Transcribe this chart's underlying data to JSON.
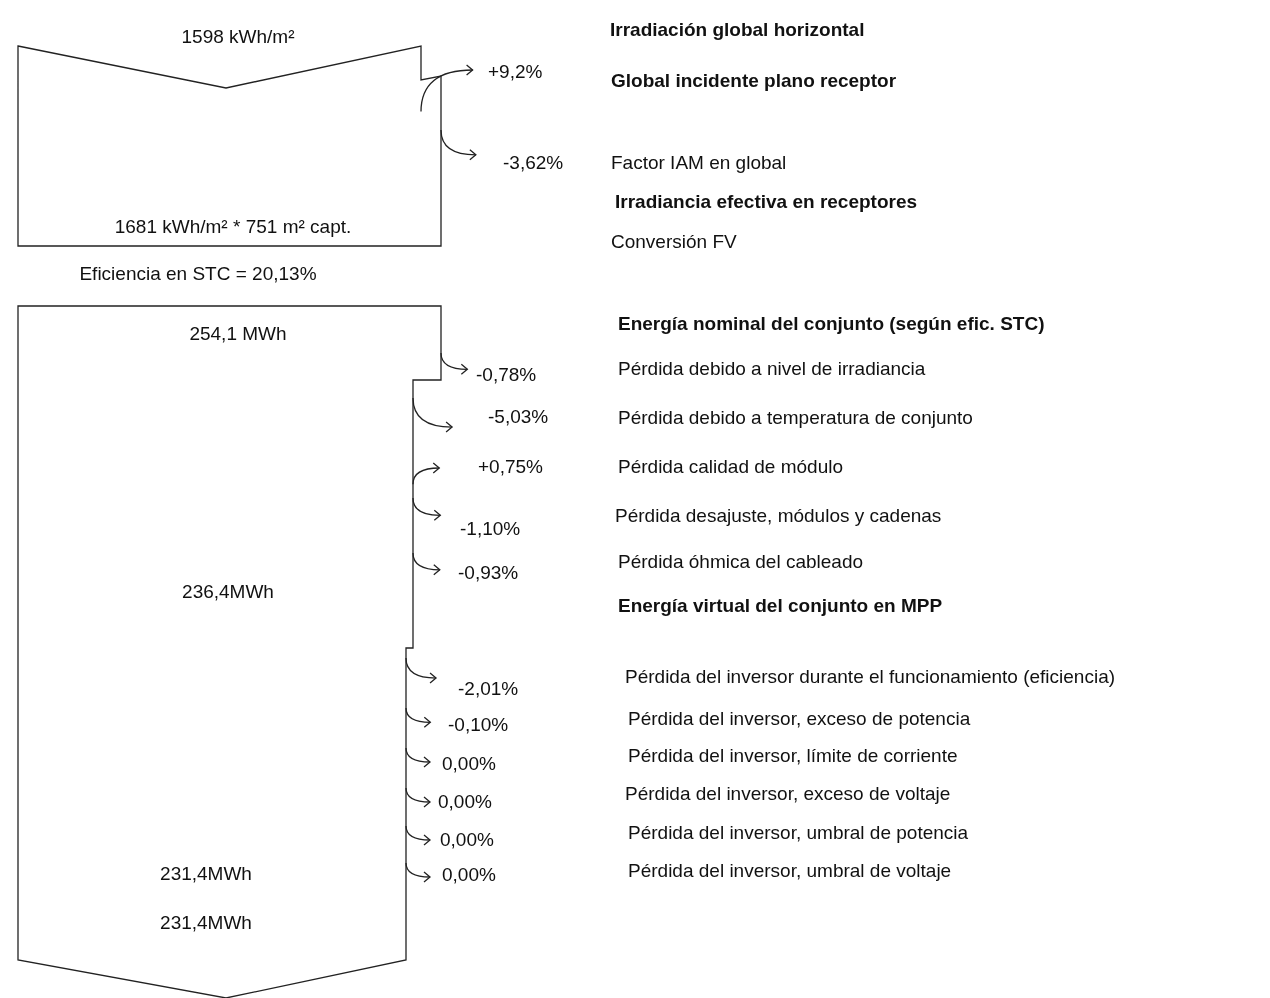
{
  "chart_data": {
    "type": "other",
    "categories": [
      "Global incidente plano receptor",
      "Factor IAM en global",
      "Pérdida debido a nivel de irradiancia",
      "Pérdida debido a temperatura de conjunto",
      "Pérdida calidad de módulo",
      "Pérdida desajuste, módulos y cadenas",
      "Pérdida óhmica del cableado",
      "Pérdida del inversor durante el funcionamiento (eficiencia)",
      "Pérdida del inversor, exceso de potencia",
      "Pérdida del inversor, límite de corriente",
      "Pérdida del inversor, exceso de voltaje",
      "Pérdida del inversor, umbral de potencia",
      "Pérdida del inversor, umbral de voltaje"
    ],
    "values": [
      9.2,
      -3.62,
      -0.78,
      -5.03,
      0.75,
      -1.1,
      -0.93,
      -2.01,
      -0.1,
      0.0,
      0.0,
      0.0,
      0.0
    ],
    "value_labels": [
      "+9,2%",
      "-3,62%",
      "-0,78%",
      "-5,03%",
      "+0,75%",
      "-1,10%",
      "-0,93%",
      "-2,01%",
      "-0,10%",
      "0,00%",
      "0,00%",
      "0,00%",
      "0,00%"
    ],
    "annotations": [
      "Irradiación global horizontal",
      "Irradiancia efectiva en receptores",
      "Conversión FV",
      "Energía nominal del conjunto (según efic. STC)",
      "Energía virtual del conjunto en MPP",
      "1598 kWh/m²",
      "1681 kWh/m² * 751 m² capt.",
      "Eficiencia en STC = 20,13%",
      "254,1 MWh",
      "236,4MWh",
      "231,4MWh",
      "231,4MWh"
    ]
  }
}
